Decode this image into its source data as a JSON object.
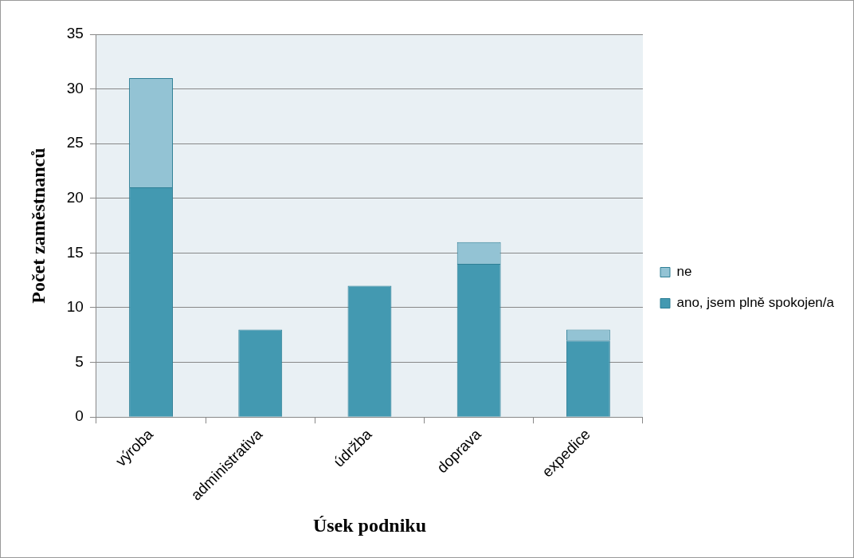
{
  "chart_data": {
    "type": "bar",
    "stacked": true,
    "xlabel": "Úsek podniku",
    "ylabel": "Počet zaměstnanců",
    "categories": [
      "výroba",
      "administrativa",
      "údržba",
      "doprava",
      "expedice"
    ],
    "series": [
      {
        "name": "ano, jsem plně spokojen/a",
        "color": "#4399b1",
        "values": [
          21,
          8,
          12,
          14,
          7
        ]
      },
      {
        "name": "ne",
        "color": "#93c3d4",
        "values": [
          10,
          0,
          0,
          2,
          1
        ]
      }
    ],
    "ylim": [
      0,
      35
    ],
    "yticks": [
      0,
      5,
      10,
      15,
      20,
      25,
      30,
      35
    ],
    "grid": "y",
    "legend": "right"
  }
}
